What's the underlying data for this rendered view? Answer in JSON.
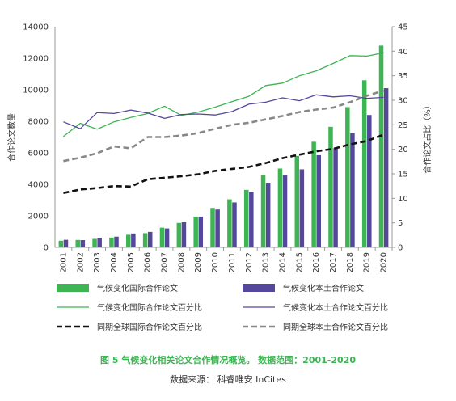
{
  "chart_data": {
    "type": "bar+line",
    "categories": [
      "2001",
      "2002",
      "2003",
      "2004",
      "2005",
      "2006",
      "2007",
      "2008",
      "2009",
      "2010",
      "2011",
      "2012",
      "2013",
      "2014",
      "2015",
      "2016",
      "2017",
      "2018",
      "2019",
      "2020"
    ],
    "y_left": {
      "label": "合作论文数量",
      "range": [
        0,
        14000
      ],
      "ticks": [
        0,
        2000,
        4000,
        6000,
        8000,
        10000,
        12000,
        14000
      ]
    },
    "y_right": {
      "label": "合作论文占比（%）",
      "range": [
        0,
        45
      ],
      "ticks": [
        0,
        5,
        10,
        15,
        20,
        25,
        30,
        35,
        40,
        45
      ]
    },
    "grid": false,
    "legend": "bottom",
    "bar_series": [
      {
        "name": "气候变化国际合作论文",
        "color": "#3cb552",
        "axis": "left",
        "values": [
          420,
          470,
          540,
          620,
          800,
          900,
          1250,
          1550,
          1950,
          2500,
          3050,
          3650,
          4600,
          5000,
          5800,
          6700,
          7650,
          8900,
          10600,
          12800
        ]
      },
      {
        "name": "气候变化本土合作论文",
        "color": "#54479c",
        "axis": "left",
        "values": [
          480,
          460,
          600,
          680,
          880,
          980,
          1200,
          1600,
          1950,
          2400,
          2850,
          3500,
          4100,
          4600,
          4950,
          5850,
          6300,
          7250,
          8400,
          10100
        ]
      }
    ],
    "line_series": [
      {
        "name": "气候变化国际合作论文百分比",
        "color": "#3cb552",
        "dash": "solid",
        "width": 1.3,
        "axis": "right",
        "values": [
          22.6,
          25.3,
          24.1,
          25.6,
          26.5,
          27.3,
          28.8,
          26.9,
          27.6,
          28.6,
          29.7,
          30.8,
          33.0,
          33.5,
          35.0,
          36.0,
          37.5,
          39.1,
          39.0,
          39.7
        ]
      },
      {
        "name": "气候变化本土合作论文百分比",
        "color": "#54479c",
        "dash": "solid",
        "width": 1.3,
        "axis": "right",
        "values": [
          25.6,
          24.2,
          27.5,
          27.3,
          28.0,
          27.4,
          26.3,
          27.1,
          27.2,
          27.0,
          27.7,
          29.2,
          29.6,
          30.5,
          29.9,
          31.1,
          30.7,
          30.9,
          30.4,
          30.6
        ]
      },
      {
        "name": "同期全球国际合作论文百分比",
        "color": "#111111",
        "dash": "7,4",
        "width": 2.6,
        "axis": "right",
        "values": [
          11.1,
          11.8,
          12.1,
          12.5,
          12.4,
          13.9,
          14.2,
          14.5,
          14.9,
          15.6,
          16.0,
          16.4,
          17.2,
          18.2,
          18.9,
          19.6,
          20.1,
          21.0,
          21.7,
          23.0
        ]
      },
      {
        "name": "同期全球本土合作论文百分比",
        "color": "#888888",
        "dash": "7,4",
        "width": 2.6,
        "axis": "right",
        "values": [
          17.6,
          18.3,
          19.2,
          20.6,
          20.2,
          22.5,
          22.5,
          22.8,
          23.3,
          24.2,
          25.0,
          25.4,
          26.1,
          26.8,
          27.6,
          28.1,
          28.5,
          29.6,
          30.9,
          32.0
        ]
      }
    ]
  },
  "caption": "图 5  气候变化相关论文合作情况概览。 数据范围：2001-2020",
  "source": "数据来源： 科睿唯安 InCites"
}
